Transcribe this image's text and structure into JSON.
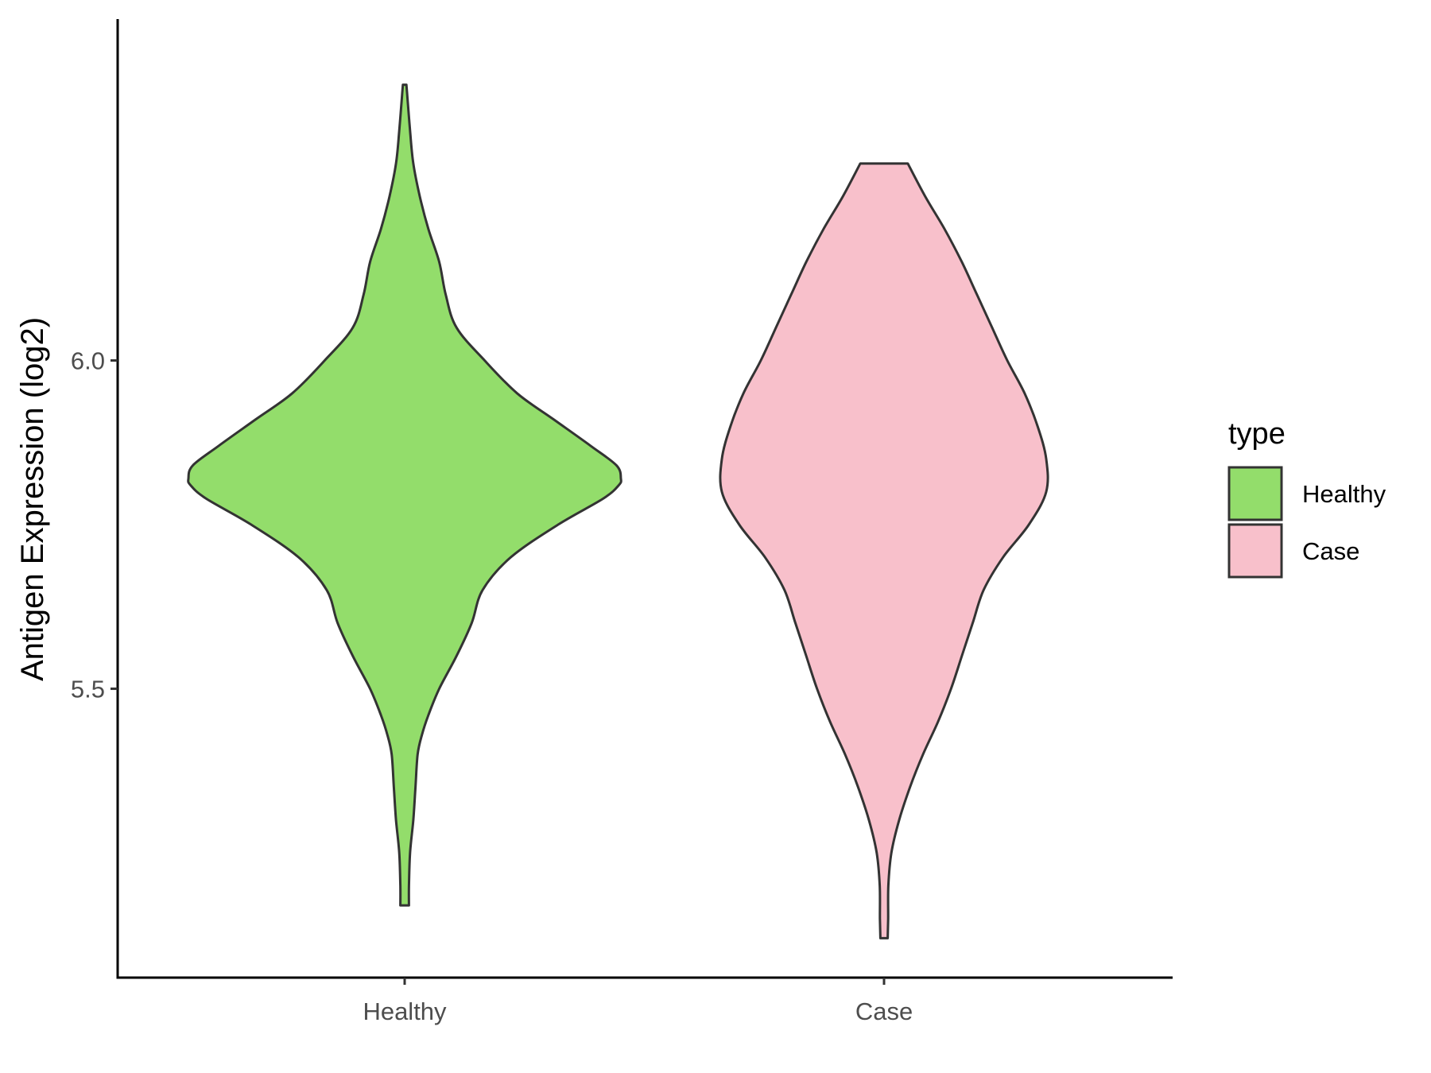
{
  "chart_data": {
    "type": "violin",
    "ylabel": "Antigen Expression (log2)",
    "xlabel": "",
    "categories": [
      "Healthy",
      "Case"
    ],
    "yticks": [
      {
        "value": 5.5,
        "label": "5.5"
      },
      {
        "value": 6.0,
        "label": "6.0"
      }
    ],
    "ylim": [
      5.06,
      6.52
    ],
    "legend": {
      "title": "type",
      "position": "right",
      "entries": [
        {
          "label": "Healthy",
          "color": "#93dd6b"
        },
        {
          "label": "Case",
          "color": "#f8c0cb"
        }
      ]
    },
    "grid": false,
    "series": [
      {
        "category": "Healthy",
        "color": "#93dd6b",
        "min": 5.17,
        "max": 6.42,
        "density": [
          [
            5.17,
            0.02
          ],
          [
            5.2,
            0.02
          ],
          [
            5.25,
            0.025
          ],
          [
            5.3,
            0.04
          ],
          [
            5.35,
            0.05
          ],
          [
            5.4,
            0.06
          ],
          [
            5.43,
            0.08
          ],
          [
            5.46,
            0.11
          ],
          [
            5.5,
            0.16
          ],
          [
            5.55,
            0.24
          ],
          [
            5.6,
            0.31
          ],
          [
            5.65,
            0.36
          ],
          [
            5.7,
            0.49
          ],
          [
            5.75,
            0.71
          ],
          [
            5.79,
            0.92
          ],
          [
            5.81,
            0.99
          ],
          [
            5.82,
            1.0
          ],
          [
            5.84,
            0.98
          ],
          [
            5.87,
            0.86
          ],
          [
            5.91,
            0.69
          ],
          [
            5.95,
            0.52
          ],
          [
            6.0,
            0.37
          ],
          [
            6.05,
            0.24
          ],
          [
            6.1,
            0.19
          ],
          [
            6.15,
            0.16
          ],
          [
            6.2,
            0.11
          ],
          [
            6.25,
            0.07
          ],
          [
            6.3,
            0.04
          ],
          [
            6.35,
            0.025
          ],
          [
            6.4,
            0.013
          ],
          [
            6.42,
            0.008
          ]
        ]
      },
      {
        "category": "Case",
        "color": "#f8c0cb",
        "min": 5.12,
        "max": 6.3,
        "density": [
          [
            5.12,
            0.017
          ],
          [
            5.15,
            0.019
          ],
          [
            5.2,
            0.02
          ],
          [
            5.25,
            0.034
          ],
          [
            5.3,
            0.07
          ],
          [
            5.35,
            0.12
          ],
          [
            5.4,
            0.18
          ],
          [
            5.45,
            0.25
          ],
          [
            5.5,
            0.31
          ],
          [
            5.55,
            0.36
          ],
          [
            5.6,
            0.41
          ],
          [
            5.65,
            0.46
          ],
          [
            5.7,
            0.55
          ],
          [
            5.75,
            0.67
          ],
          [
            5.8,
            0.75
          ],
          [
            5.85,
            0.75
          ],
          [
            5.9,
            0.71
          ],
          [
            5.95,
            0.65
          ],
          [
            6.0,
            0.57
          ],
          [
            6.05,
            0.5
          ],
          [
            6.1,
            0.43
          ],
          [
            6.15,
            0.36
          ],
          [
            6.2,
            0.28
          ],
          [
            6.25,
            0.19
          ],
          [
            6.3,
            0.11
          ]
        ]
      }
    ]
  }
}
